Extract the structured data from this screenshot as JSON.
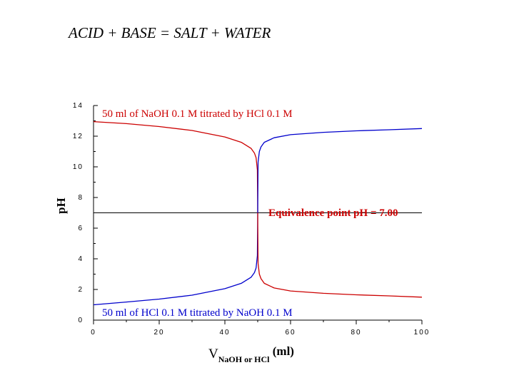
{
  "slide_title": "ACID + BASE = SALT + WATER",
  "chart_data": {
    "type": "line",
    "title": "",
    "xlabel": {
      "main": "V",
      "subscript": "NaOH or HCl",
      "unit": "(ml)"
    },
    "ylabel": "pH",
    "xlim": [
      0,
      100
    ],
    "ylim": [
      0,
      14
    ],
    "x_ticks": [
      "0",
      "20",
      "40",
      "60",
      "80",
      "100"
    ],
    "y_ticks": [
      "0",
      "2",
      "4",
      "6",
      "8",
      "10",
      "12",
      "14"
    ],
    "annotations": {
      "top": "50 ml of NaOH 0.1 M titrated by HCl 0.1 M",
      "bottom": "50 ml of HCl 0.1 M titrated by NaOH 0.1 M",
      "equivalence": "Equivalence point pH = 7.00"
    },
    "reference_line": {
      "y": 7.0
    },
    "series": [
      {
        "color": "#cc0000",
        "x": [
          0,
          10,
          20,
          30,
          40,
          45,
          48,
          49,
          49.5,
          49.9,
          50
        ],
        "y": [
          12.95,
          12.82,
          12.63,
          12.37,
          11.95,
          11.6,
          11.2,
          10.9,
          10.6,
          9.8,
          7.0
        ]
      },
      {
        "color": "#0000cc",
        "x": [
          50,
          50.1,
          50.5,
          51,
          52,
          55,
          60,
          70,
          80,
          90,
          100
        ],
        "y": [
          7.0,
          10.3,
          11.0,
          11.3,
          11.6,
          11.9,
          12.1,
          12.25,
          12.35,
          12.42,
          12.5
        ]
      },
      {
        "color": "#0000cc",
        "x": [
          0,
          10,
          20,
          30,
          40,
          45,
          48,
          49,
          49.5,
          49.9,
          50
        ],
        "y": [
          1.0,
          1.18,
          1.37,
          1.63,
          2.05,
          2.4,
          2.8,
          3.1,
          3.4,
          4.2,
          7.0
        ]
      },
      {
        "color": "#cc0000",
        "x": [
          50,
          50.1,
          50.5,
          51,
          52,
          55,
          60,
          70,
          80,
          90,
          100
        ],
        "y": [
          7.0,
          3.7,
          3.0,
          2.7,
          2.4,
          2.1,
          1.9,
          1.75,
          1.65,
          1.58,
          1.5
        ]
      }
    ]
  },
  "colors": {
    "red": "#cc0000",
    "blue": "#0000cc",
    "axis": "#000000"
  }
}
